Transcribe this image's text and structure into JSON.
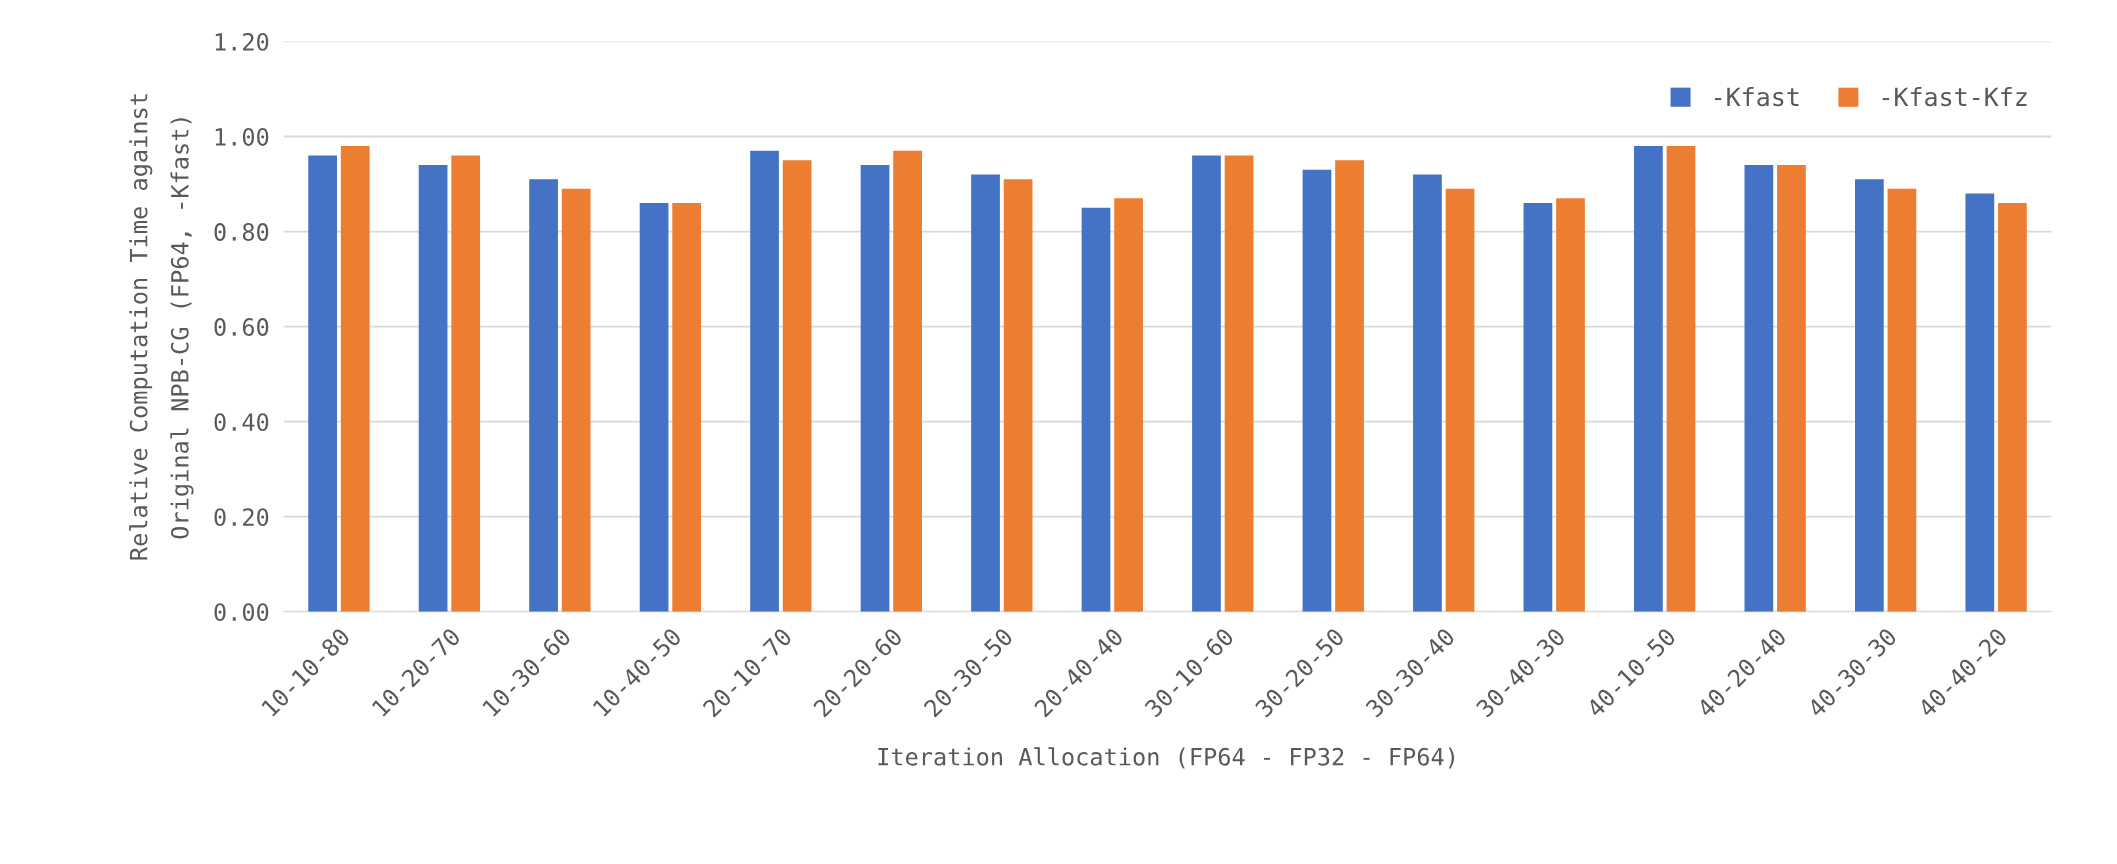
{
  "chart_data": {
    "type": "bar",
    "xlabel": "Iteration Allocation (FP64 - FP32 - FP64)",
    "ylabel": "Relative Computation Time against\nOriginal NPB-CG (FP64, -Kfast)",
    "categories": [
      "10-10-80",
      "10-20-70",
      "10-30-60",
      "10-40-50",
      "20-10-70",
      "20-20-60",
      "20-30-50",
      "20-40-40",
      "30-10-60",
      "30-20-50",
      "30-30-40",
      "30-40-30",
      "40-10-50",
      "40-20-40",
      "40-30-30",
      "40-40-20"
    ],
    "series": [
      {
        "name": "-Kfast",
        "color": "#4472c4",
        "values": [
          0.96,
          0.94,
          0.91,
          0.86,
          0.97,
          0.94,
          0.92,
          0.85,
          0.96,
          0.93,
          0.92,
          0.86,
          0.98,
          0.94,
          0.91,
          0.88
        ]
      },
      {
        "name": "-Kfast-Kfz",
        "color": "#ed7d31",
        "values": [
          0.98,
          0.96,
          0.89,
          0.86,
          0.95,
          0.97,
          0.91,
          0.87,
          0.96,
          0.95,
          0.89,
          0.87,
          0.98,
          0.94,
          0.89,
          0.86
        ]
      }
    ],
    "ylim": [
      0,
      1.2
    ],
    "yticks": [
      {
        "value": 0,
        "label": "0.00"
      },
      {
        "value": 0.2,
        "label": "0.20"
      },
      {
        "value": 0.4,
        "label": "0.40"
      },
      {
        "value": 0.6,
        "label": "0.60"
      },
      {
        "value": 0.8,
        "label": "0.80"
      },
      {
        "value": 1.0,
        "label": "1.00"
      },
      {
        "value": 1.2,
        "label": "1.20"
      }
    ],
    "grid": "y",
    "legend": "top right"
  }
}
